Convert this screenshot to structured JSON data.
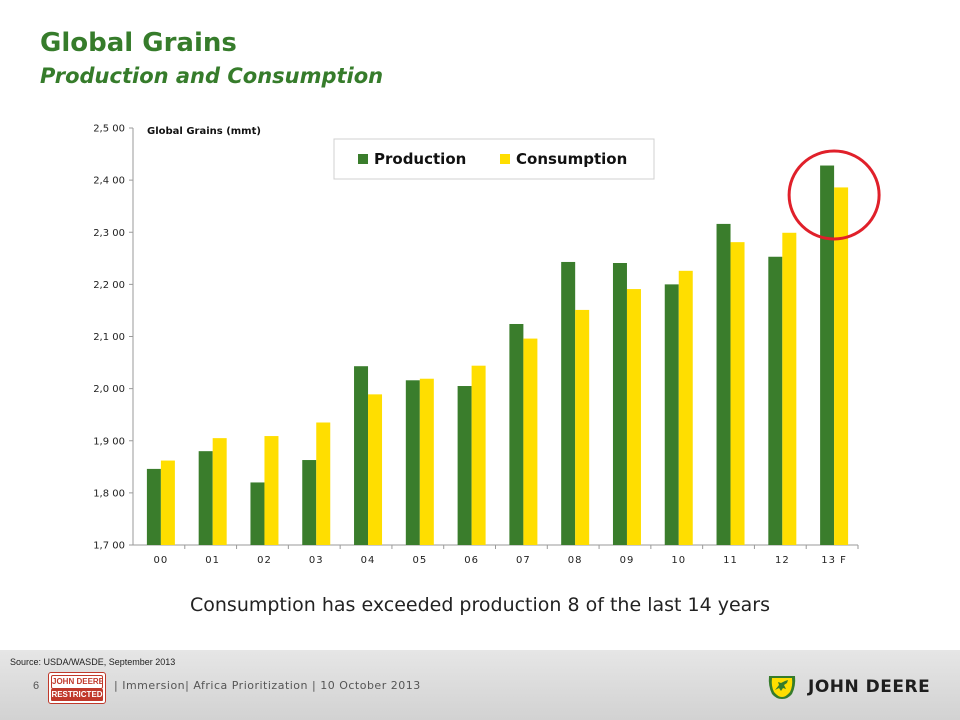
{
  "slide": {
    "title": "Global Grains",
    "subtitle": "Production and Consumption",
    "caption": "Consumption has exceeded production 8 of the last 14 years"
  },
  "footer": {
    "source": "Source: USDA/WASDE, September 2013",
    "page_number": "6",
    "restricted_badge_top": "JOHN DEERE",
    "restricted_badge_bottom": "RESTRICTED",
    "tagline": "| Immersion| Africa Prioritization | 10 October 2013",
    "brand": "JOHN DEERE"
  },
  "colors": {
    "production": "#3a7d2c",
    "consumption": "#ffde00",
    "brand_green": "#367c2b",
    "highlight_circle": "#e0202a"
  },
  "chart_data": {
    "type": "bar",
    "title": "Global Grains (mmt)",
    "categories": [
      "00",
      "01",
      "02",
      "03",
      "04",
      "05",
      "06",
      "07",
      "08",
      "09",
      "10",
      "11",
      "12",
      "13 F"
    ],
    "series": [
      {
        "name": "Production",
        "values": [
          1846,
          1880,
          1820,
          1863,
          2043,
          2016,
          2005,
          2124,
          2243,
          2241,
          2200,
          2316,
          2253,
          2428
        ]
      },
      {
        "name": "Consumption",
        "values": [
          1862,
          1905,
          1909,
          1935,
          1989,
          2019,
          2044,
          2096,
          2151,
          2191,
          2226,
          2281,
          2299,
          2386
        ]
      }
    ],
    "ylim": [
      1700,
      2500
    ],
    "yticks": [
      1700,
      1800,
      1900,
      2000,
      2100,
      2200,
      2300,
      2400,
      2500
    ],
    "ytick_labels": [
      "1,7 00",
      "1,8 00",
      "1,9 00",
      "2,0 00",
      "2,1 00",
      "2,2 00",
      "2,3 00",
      "2,4 00",
      "2,5 00"
    ],
    "legend": "top-center",
    "grid": false,
    "highlight": "13 F"
  }
}
